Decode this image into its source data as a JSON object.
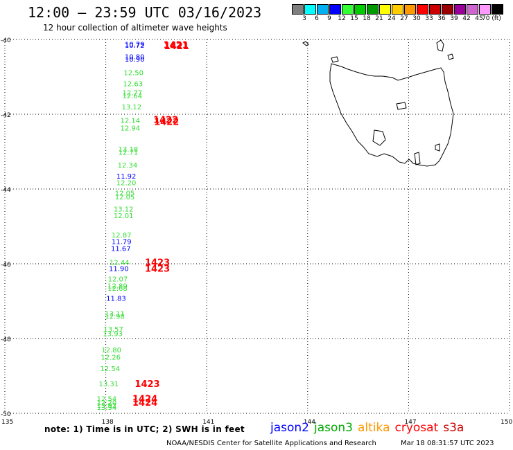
{
  "title": "12:00 – 23:59 UTC 03/16/2023",
  "subtitle": "12 hour collection of altimeter wave heights",
  "colorbar": {
    "colors": [
      "#7f7f7f",
      "#00ffff",
      "#00b0f0",
      "#0000ff",
      "#33ff33",
      "#00cc00",
      "#009900",
      "#ffff00",
      "#ffcc00",
      "#ff9900",
      "#ff0000",
      "#cc0000",
      "#990000",
      "#990099",
      "#cc66cc",
      "#ff99ff",
      "#000000"
    ],
    "labels": [
      "3",
      "6",
      "9",
      "12",
      "15",
      "18",
      "21",
      "24",
      "27",
      "30",
      "33",
      "36",
      "39",
      "42",
      "45",
      "70 (ft)"
    ]
  },
  "map": {
    "lat_labels": [
      "-40",
      "-42",
      "-44",
      "-46",
      "-48",
      "-50"
    ],
    "lon_labels": [
      "135",
      "138",
      "141",
      "144",
      "147",
      "150"
    ]
  },
  "observations": [
    {
      "text": "10.72",
      "color": "#0000ff",
      "lat": -40.15,
      "lon": 138.85
    },
    {
      "text": "10.79",
      "color": "#0000ff",
      "lat": -40.12,
      "lon": 138.85
    },
    {
      "text": "10.80",
      "color": "#0000ff",
      "lat": -40.45,
      "lon": 138.85
    },
    {
      "text": "10.90",
      "color": "#0000ff",
      "lat": -40.52,
      "lon": 138.85
    },
    {
      "text": "12.50",
      "color": "#33dd33",
      "lat": -40.88,
      "lon": 138.82
    },
    {
      "text": "12.63",
      "color": "#33dd33",
      "lat": -41.18,
      "lon": 138.8
    },
    {
      "text": "12.77",
      "color": "#33dd33",
      "lat": -41.42,
      "lon": 138.78
    },
    {
      "text": "12.64",
      "color": "#33dd33",
      "lat": -41.5,
      "lon": 138.78
    },
    {
      "text": "13.12",
      "color": "#33dd33",
      "lat": -41.8,
      "lon": 138.76
    },
    {
      "text": "12.14",
      "color": "#33dd33",
      "lat": -42.16,
      "lon": 138.72
    },
    {
      "text": "12.94",
      "color": "#33dd33",
      "lat": -42.36,
      "lon": 138.72
    },
    {
      "text": "13.18",
      "color": "#33dd33",
      "lat": -42.93,
      "lon": 138.66
    },
    {
      "text": "12.71",
      "color": "#33dd33",
      "lat": -43.01,
      "lon": 138.66
    },
    {
      "text": "12.34",
      "color": "#33dd33",
      "lat": -43.35,
      "lon": 138.64
    },
    {
      "text": "11.92",
      "color": "#0000ff",
      "lat": -43.65,
      "lon": 138.6
    },
    {
      "text": "12.20",
      "color": "#33dd33",
      "lat": -43.82,
      "lon": 138.6
    },
    {
      "text": "12.05",
      "color": "#33dd33",
      "lat": -44.1,
      "lon": 138.56
    },
    {
      "text": "12.05",
      "color": "#33dd33",
      "lat": -44.2,
      "lon": 138.56
    },
    {
      "text": "13.12",
      "color": "#33dd33",
      "lat": -44.53,
      "lon": 138.52
    },
    {
      "text": "12.01",
      "color": "#33dd33",
      "lat": -44.7,
      "lon": 138.52
    },
    {
      "text": "12.87",
      "color": "#33dd33",
      "lat": -45.22,
      "lon": 138.46
    },
    {
      "text": "11.79",
      "color": "#0000ff",
      "lat": -45.4,
      "lon": 138.46
    },
    {
      "text": "11.67",
      "color": "#0000ff",
      "lat": -45.58,
      "lon": 138.44
    },
    {
      "text": "12.44",
      "color": "#33dd33",
      "lat": -45.95,
      "lon": 138.4
    },
    {
      "text": "11.90",
      "color": "#0000ff",
      "lat": -46.12,
      "lon": 138.38
    },
    {
      "text": "12.07",
      "color": "#33dd33",
      "lat": -46.4,
      "lon": 138.35
    },
    {
      "text": "12.89",
      "color": "#33dd33",
      "lat": -46.58,
      "lon": 138.34
    },
    {
      "text": "12.68",
      "color": "#33dd33",
      "lat": -46.65,
      "lon": 138.34
    },
    {
      "text": "11.83",
      "color": "#0000ff",
      "lat": -46.92,
      "lon": 138.3
    },
    {
      "text": "13.11",
      "color": "#33dd33",
      "lat": -47.32,
      "lon": 138.26
    },
    {
      "text": "12.98",
      "color": "#33dd33",
      "lat": -47.4,
      "lon": 138.26
    },
    {
      "text": "13.57",
      "color": "#33dd33",
      "lat": -47.74,
      "lon": 138.22
    },
    {
      "text": "13.93",
      "color": "#33dd33",
      "lat": -47.86,
      "lon": 138.2
    },
    {
      "text": "12.80",
      "color": "#33dd33",
      "lat": -48.3,
      "lon": 138.16
    },
    {
      "text": "12.26",
      "color": "#33dd33",
      "lat": -48.49,
      "lon": 138.14
    },
    {
      "text": "12.54",
      "color": "#33dd33",
      "lat": -48.8,
      "lon": 138.12
    },
    {
      "text": "13.31",
      "color": "#33dd33",
      "lat": -49.2,
      "lon": 138.08
    },
    {
      "text": "12.54",
      "color": "#33dd33",
      "lat": -49.6,
      "lon": 138.02
    },
    {
      "text": "12.20",
      "color": "#33dd33",
      "lat": -49.7,
      "lon": 138.02
    },
    {
      "text": "13.92",
      "color": "#33dd33",
      "lat": -49.78,
      "lon": 138.02
    },
    {
      "text": "13.94",
      "color": "#33dd33",
      "lat": -49.83,
      "lon": 138.02
    }
  ],
  "time_labels": [
    {
      "text": "1421",
      "lat": -40.14,
      "lon": 140.0
    },
    {
      "text": "1421",
      "lat": -40.17,
      "lon": 140.02
    },
    {
      "text": "1422",
      "lat": -42.14,
      "lon": 139.7
    },
    {
      "text": "1422",
      "lat": -42.19,
      "lon": 139.72
    },
    {
      "text": "1423",
      "lat": -45.95,
      "lon": 139.45
    },
    {
      "text": "1423",
      "lat": -46.12,
      "lon": 139.45
    },
    {
      "text": "1423",
      "lat": -49.2,
      "lon": 139.15
    },
    {
      "text": "1424",
      "lat": -49.6,
      "lon": 139.08
    },
    {
      "text": "1424",
      "lat": -49.7,
      "lon": 139.08
    }
  ],
  "note": "note:  1) Time is in UTC;  2) SWH is in feet",
  "legend": [
    {
      "name": "jason2",
      "color": "#0000ff"
    },
    {
      "name": "jason3",
      "color": "#00aa00"
    },
    {
      "name": "altika",
      "color": "#ff9900"
    },
    {
      "name": "cryosat",
      "color": "#ff0000"
    },
    {
      "name": "s3a",
      "color": "#cc0000"
    }
  ],
  "footer": "NOAA/NESDIS Center for Satellite Applications and Research",
  "generated": "Mar 18 08:31:57 UTC 2023"
}
